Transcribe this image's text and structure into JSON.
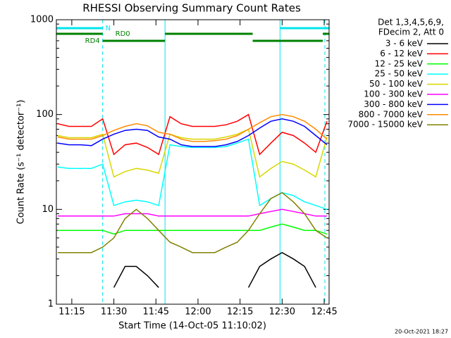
{
  "chart_data": {
    "type": "line",
    "title": "RHESSI Observing Summary Count Rates",
    "x_label": "Start Time (14-Oct-05 11:10:02)",
    "y_label": "Count Rate (s⁻¹ detector⁻¹)",
    "legend_header": [
      "Det 1,3,4,5,6,9,",
      "FDecim 2, Att 0"
    ],
    "footer": "20-Oct-2021 18:27",
    "log_y": true,
    "ylim": [
      1,
      1000
    ],
    "yticks": [
      1,
      10,
      100,
      1000
    ],
    "xlim": [
      "11:09:30",
      "12:46:45"
    ],
    "xticks": [
      "11:15",
      "11:30",
      "11:45",
      "12:00",
      "12:15",
      "12:30",
      "12:45"
    ],
    "x": [
      "11:10",
      "11:14",
      "11:18",
      "11:22",
      "11:26",
      "11:30",
      "11:34",
      "11:38",
      "11:42",
      "11:46",
      "11:50",
      "11:54",
      "11:58",
      "12:02",
      "12:06",
      "12:10",
      "12:14",
      "12:18",
      "12:22",
      "12:26",
      "12:30",
      "12:34",
      "12:38",
      "12:42",
      "12:46"
    ],
    "series": [
      {
        "name": "3 - 6 keV",
        "color": "#000000",
        "values": [
          null,
          null,
          null,
          null,
          null,
          1.5,
          2.5,
          2.5,
          2,
          1.5,
          null,
          null,
          null,
          null,
          null,
          null,
          null,
          1.5,
          2.5,
          3,
          3.5,
          3,
          2.5,
          1.5,
          null
        ]
      },
      {
        "name": "6 - 12 keV",
        "color": "#ff0000",
        "values": [
          80,
          75,
          75,
          75,
          90,
          38,
          48,
          50,
          45,
          38,
          95,
          80,
          75,
          75,
          75,
          78,
          85,
          100,
          38,
          50,
          65,
          60,
          50,
          40,
          85
        ]
      },
      {
        "name": "12 - 25 keV",
        "color": "#00ff00",
        "values": [
          6,
          6,
          6,
          6,
          6,
          5.5,
          6,
          6,
          6,
          6,
          6,
          6,
          6,
          6,
          6,
          6,
          6,
          6,
          6,
          6.5,
          7,
          6.5,
          6,
          6,
          5.5
        ]
      },
      {
        "name": "25 - 50 keV",
        "color": "#00ffff",
        "values": [
          28,
          27,
          27,
          27,
          30,
          11,
          12,
          12.5,
          12,
          11,
          48,
          46,
          45,
          45,
          45,
          46,
          50,
          55,
          11,
          13,
          15,
          14,
          12,
          11,
          10
        ]
      },
      {
        "name": "50 - 100 keV",
        "color": "#d8d800",
        "values": [
          60,
          57,
          57,
          57,
          62,
          22,
          25,
          27,
          26,
          24,
          62,
          57,
          55,
          55,
          55,
          58,
          62,
          70,
          22,
          27,
          32,
          30,
          26,
          22,
          58
        ]
      },
      {
        "name": "100 - 300 keV",
        "color": "#ff00ff",
        "values": [
          8.5,
          8.5,
          8.5,
          8.5,
          8.5,
          8.5,
          9,
          9,
          9,
          8.5,
          8.5,
          8.5,
          8.5,
          8.5,
          8.5,
          8.5,
          8.5,
          8.5,
          9,
          9.5,
          10,
          9.5,
          9,
          8.5,
          8.5
        ]
      },
      {
        "name": "300 - 800 keV",
        "color": "#0000ff",
        "values": [
          50,
          48,
          48,
          47,
          55,
          62,
          68,
          70,
          68,
          58,
          55,
          48,
          46,
          46,
          46,
          48,
          52,
          60,
          72,
          85,
          90,
          85,
          75,
          60,
          48
        ]
      },
      {
        "name": "800 - 7000 keV",
        "color": "#ff8c00",
        "values": [
          58,
          55,
          55,
          55,
          60,
          68,
          75,
          80,
          76,
          65,
          62,
          55,
          52,
          52,
          53,
          55,
          60,
          70,
          82,
          95,
          100,
          95,
          85,
          70,
          55
        ]
      },
      {
        "name": "7000 - 15000 keV",
        "color": "#808000",
        "values": [
          3.5,
          3.5,
          3.5,
          3.5,
          4,
          5,
          8,
          10,
          8,
          6,
          4.5,
          4,
          3.5,
          3.5,
          3.5,
          4,
          4.5,
          6,
          9,
          13,
          15,
          12,
          9,
          6,
          5
        ]
      }
    ],
    "status": [
      {
        "name": "N",
        "color": "#00e5ee",
        "segments": [
          [
            "11:09:30",
            "11:26"
          ],
          [
            "12:29:15",
            "12:46:45"
          ]
        ]
      },
      {
        "name": "RD0",
        "color": "#008000",
        "segments": [
          [
            "11:09:30",
            "11:26"
          ],
          [
            "11:48:15",
            "12:19:30"
          ],
          [
            "12:44:30",
            "12:46:45"
          ]
        ]
      },
      {
        "name": "RD4",
        "color": "#008000",
        "segments": [
          [
            "11:26",
            "11:48:15"
          ],
          [
            "12:19:30",
            "12:44:30"
          ]
        ]
      }
    ],
    "markers": {
      "color": "#00e5ee",
      "lines": [
        {
          "x": "11:26",
          "style": "dashed"
        },
        {
          "x": "11:48:15",
          "style": "solid"
        },
        {
          "x": "12:29:15",
          "style": "solid"
        },
        {
          "x": "12:45:15",
          "style": "dashed"
        }
      ]
    }
  }
}
